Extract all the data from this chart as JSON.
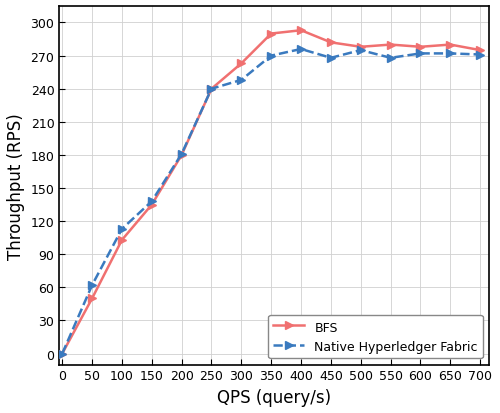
{
  "bfs_x": [
    0,
    50,
    100,
    150,
    200,
    250,
    300,
    350,
    400,
    450,
    500,
    550,
    600,
    650,
    700
  ],
  "bfs_y": [
    0,
    50,
    103,
    135,
    180,
    240,
    263,
    290,
    293,
    282,
    278,
    280,
    278,
    280,
    275
  ],
  "nhf_x": [
    0,
    50,
    100,
    150,
    200,
    250,
    300,
    350,
    400,
    450,
    500,
    550,
    600,
    650,
    700
  ],
  "nhf_y": [
    0,
    62,
    113,
    138,
    181,
    240,
    248,
    270,
    276,
    268,
    275,
    268,
    272,
    272,
    271
  ],
  "bfs_color": "#f07070",
  "nhf_color": "#3a7abf",
  "xlabel": "QPS (query/s)",
  "ylabel": "Throughput (RPS)",
  "bfs_label": "BFS",
  "nhf_label": "Native Hyperledger Fabric",
  "xlim": [
    -5,
    715
  ],
  "ylim": [
    -10,
    315
  ],
  "xticks": [
    0,
    50,
    100,
    150,
    200,
    250,
    300,
    350,
    400,
    450,
    500,
    550,
    600,
    650,
    700
  ],
  "yticks": [
    0,
    30,
    60,
    90,
    120,
    150,
    180,
    210,
    240,
    270,
    300
  ],
  "grid_color": "#d0d0d0",
  "background_color": "#ffffff",
  "fig_background": "#ffffff",
  "tick_fontsize": 9,
  "label_fontsize": 12,
  "legend_fontsize": 9,
  "line_width": 1.8,
  "marker_size": 6
}
